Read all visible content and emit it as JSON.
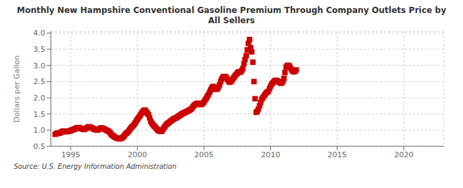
{
  "chart_data": {
    "type": "scatter",
    "title": "Monthly New Hampshire Conventional Gasoline Premium Through Company Outlets Price by All Sellers",
    "ylabel": "Dollars per Gallon",
    "annotations": [
      "Source: U.S. Energy Information Administration"
    ],
    "color": "#cc0000",
    "marker": "square",
    "grid": true,
    "xlim": [
      1993.5,
      2023.0
    ],
    "ylim": [
      0.5,
      4.05
    ],
    "xticks": [
      1995,
      2000,
      2005,
      2010,
      2015,
      2020
    ],
    "yticks": [
      0.5,
      {
        "value": 1.0,
        "label": "1.0"
      },
      1.5,
      {
        "value": 2.0,
        "label": "2.0"
      },
      2.5,
      {
        "value": 3.0,
        "label": "3.0"
      },
      3.5,
      {
        "value": 4.0,
        "label": "4.0"
      }
    ],
    "x": [
      1993.83,
      1993.92,
      1994.0,
      1994.08,
      1994.17,
      1994.25,
      1994.33,
      1994.42,
      1994.5,
      1994.58,
      1994.67,
      1994.75,
      1994.83,
      1994.92,
      1995.0,
      1995.08,
      1995.17,
      1995.25,
      1995.33,
      1995.42,
      1995.5,
      1995.58,
      1995.67,
      1995.75,
      1995.83,
      1995.92,
      1996.0,
      1996.08,
      1996.17,
      1996.25,
      1996.33,
      1996.42,
      1996.5,
      1996.58,
      1996.67,
      1996.75,
      1996.83,
      1996.92,
      1997.0,
      1997.08,
      1997.17,
      1997.25,
      1997.33,
      1997.42,
      1997.5,
      1997.58,
      1997.67,
      1997.75,
      1997.83,
      1997.92,
      1998.0,
      1998.08,
      1998.17,
      1998.25,
      1998.33,
      1998.42,
      1998.5,
      1998.58,
      1998.67,
      1998.75,
      1998.83,
      1998.92,
      1999.0,
      1999.08,
      1999.17,
      1999.25,
      1999.33,
      1999.42,
      1999.5,
      1999.58,
      1999.67,
      1999.75,
      1999.83,
      1999.92,
      2000.0,
      2000.08,
      2000.17,
      2000.25,
      2000.33,
      2000.42,
      2000.5,
      2000.58,
      2000.67,
      2000.75,
      2000.83,
      2000.92,
      2001.0,
      2001.08,
      2001.17,
      2001.25,
      2001.33,
      2001.42,
      2001.5,
      2001.58,
      2001.67,
      2001.75,
      2001.83,
      2001.92,
      2002.0,
      2002.08,
      2002.17,
      2002.25,
      2002.33,
      2002.42,
      2002.5,
      2002.58,
      2002.67,
      2002.75,
      2002.83,
      2002.92,
      2003.0,
      2003.08,
      2003.17,
      2003.25,
      2003.33,
      2003.42,
      2003.5,
      2003.58,
      2003.67,
      2003.75,
      2003.83,
      2003.92,
      2004.0,
      2004.08,
      2004.17,
      2004.25,
      2004.33,
      2004.42,
      2004.5,
      2004.58,
      2004.67,
      2004.75,
      2004.83,
      2004.92,
      2005.0,
      2005.08,
      2005.17,
      2005.25,
      2005.33,
      2005.42,
      2005.5,
      2005.58,
      2005.67,
      2005.75,
      2005.83,
      2005.92,
      2006.0,
      2006.08,
      2006.17,
      2006.25,
      2006.33,
      2006.42,
      2006.5,
      2006.58,
      2006.67,
      2006.75,
      2006.83,
      2006.92,
      2007.0,
      2007.08,
      2007.17,
      2007.25,
      2007.33,
      2007.42,
      2007.5,
      2007.58,
      2007.67,
      2007.75,
      2007.83,
      2007.92,
      2008.0,
      2008.08,
      2008.17,
      2008.25,
      2008.33,
      2008.42,
      2008.5,
      2008.58,
      2008.67,
      2008.75,
      2008.83,
      2008.92,
      2009.0,
      2009.08,
      2009.17,
      2009.25,
      2009.33,
      2009.42,
      2009.5,
      2009.58,
      2009.67,
      2009.75,
      2009.83,
      2009.92,
      2010.0,
      2010.08,
      2010.17,
      2010.25,
      2010.33,
      2010.42,
      2010.5,
      2010.58,
      2010.67,
      2010.75,
      2010.83,
      2010.92,
      2011.0,
      2011.08,
      2011.17,
      2011.25,
      2011.33,
      2011.42,
      2011.5,
      2011.58,
      2011.67,
      2011.75,
      2011.83,
      2011.92
    ],
    "values": [
      0.87,
      0.89,
      0.91,
      0.9,
      0.91,
      0.93,
      0.95,
      0.97,
      0.97,
      0.96,
      0.95,
      0.96,
      0.97,
      0.97,
      0.99,
      1.0,
      1.01,
      1.03,
      1.04,
      1.06,
      1.07,
      1.08,
      1.07,
      1.05,
      1.04,
      1.03,
      1.02,
      1.04,
      1.06,
      1.08,
      1.1,
      1.1,
      1.09,
      1.07,
      1.05,
      1.03,
      1.02,
      1.01,
      1.0,
      1.02,
      1.04,
      1.06,
      1.07,
      1.05,
      1.04,
      1.02,
      1.0,
      0.98,
      0.97,
      0.94,
      0.89,
      0.85,
      0.83,
      0.8,
      0.78,
      0.76,
      0.75,
      0.74,
      0.73,
      0.74,
      0.76,
      0.78,
      0.82,
      0.87,
      0.9,
      0.93,
      0.96,
      1.01,
      1.06,
      1.1,
      1.13,
      1.17,
      1.22,
      1.28,
      1.33,
      1.38,
      1.43,
      1.48,
      1.53,
      1.58,
      1.61,
      1.62,
      1.57,
      1.52,
      1.48,
      1.38,
      1.28,
      1.22,
      1.17,
      1.13,
      1.1,
      1.05,
      1.02,
      0.99,
      0.97,
      0.96,
      0.97,
      1.02,
      1.07,
      1.12,
      1.17,
      1.2,
      1.22,
      1.25,
      1.28,
      1.3,
      1.33,
      1.35,
      1.37,
      1.38,
      1.4,
      1.43,
      1.45,
      1.47,
      1.5,
      1.52,
      1.53,
      1.55,
      1.57,
      1.58,
      1.6,
      1.62,
      1.64,
      1.67,
      1.72,
      1.76,
      1.79,
      1.81,
      1.83,
      1.82,
      1.8,
      1.79,
      1.8,
      1.83,
      1.87,
      1.93,
      1.98,
      2.04,
      2.1,
      2.17,
      2.24,
      2.3,
      2.35,
      2.32,
      2.28,
      2.26,
      2.28,
      2.33,
      2.4,
      2.5,
      2.58,
      2.63,
      2.66,
      2.65,
      2.63,
      2.58,
      2.52,
      2.48,
      2.5,
      2.53,
      2.58,
      2.63,
      2.68,
      2.72,
      2.76,
      2.8,
      2.79,
      2.8,
      2.84,
      2.9,
      3.05,
      3.18,
      3.3,
      3.48,
      3.68,
      3.8,
      3.55,
      3.42,
      3.1,
      2.5,
      1.97,
      1.55,
      1.58,
      1.65,
      1.75,
      1.85,
      1.95,
      2.0,
      2.05,
      2.1,
      2.15,
      2.18,
      2.2,
      2.28,
      2.36,
      2.42,
      2.46,
      2.5,
      2.53,
      2.54,
      2.52,
      2.5,
      2.48,
      2.45,
      2.46,
      2.5,
      2.6,
      2.78,
      2.95,
      3.0,
      3.0,
      2.98,
      2.92,
      2.86,
      2.82,
      2.8,
      2.82,
      2.86
    ]
  }
}
